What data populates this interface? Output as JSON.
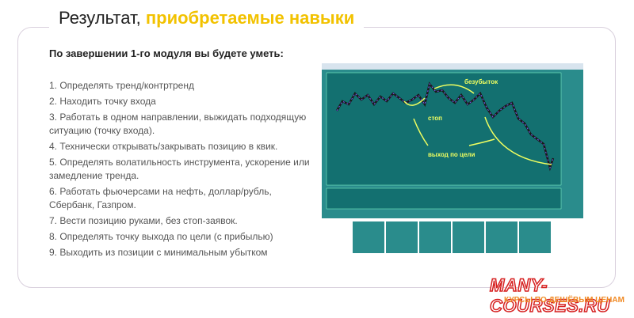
{
  "header": {
    "title": "Результат,",
    "title_highlight": "приобретаемые навыки"
  },
  "subtitle": "По завершении 1-го модуля вы будете уметь:",
  "skills": [
    "1. Определять тренд/контртренд",
    "2. Находить точку входа",
    "3. Работать в одном направлении, выжидать подходящую ситуацию (точку входа).",
    "4. Технически открывать/закрывать позицию в квик.",
    "5. Определять волатильность инструмента, ускорение или замедление тренда.",
    "6. Работать фьючерсами на нефть, доллар/рубль, Сбербанк, Газпром.",
    "7. Вести позицию руками, без стоп-заявок.",
    "8. Определять точку выхода по цели (с прибылью)",
    "9. Выходить из позиции с минимальным убытком"
  ],
  "chart_annotations": {
    "breakeven": "безубыток",
    "stop": "стоп",
    "target_exit": "выход по цели"
  },
  "watermark": {
    "site": "MANY-COURSES.RU",
    "slogan": "КУРСЫ ПО ДЕШЁВЫМ ЦЕНАМ"
  }
}
